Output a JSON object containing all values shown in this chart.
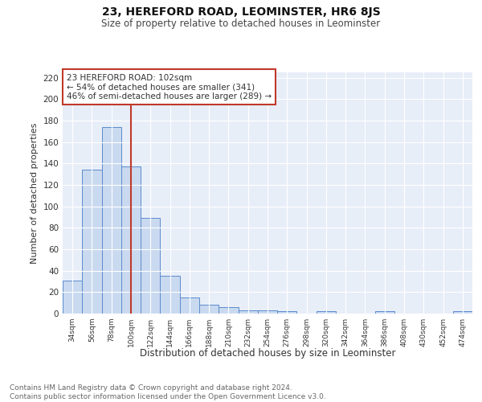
{
  "title": "23, HEREFORD ROAD, LEOMINSTER, HR6 8JS",
  "subtitle": "Size of property relative to detached houses in Leominster",
  "xlabel": "Distribution of detached houses by size in Leominster",
  "ylabel": "Number of detached properties",
  "categories": [
    "34sqm",
    "56sqm",
    "78sqm",
    "100sqm",
    "122sqm",
    "144sqm",
    "166sqm",
    "188sqm",
    "210sqm",
    "232sqm",
    "254sqm",
    "276sqm",
    "298sqm",
    "320sqm",
    "342sqm",
    "364sqm",
    "386sqm",
    "408sqm",
    "430sqm",
    "452sqm",
    "474sqm"
  ],
  "values": [
    31,
    134,
    174,
    137,
    89,
    35,
    15,
    8,
    6,
    3,
    3,
    2,
    0,
    2,
    0,
    0,
    2,
    0,
    0,
    0,
    2
  ],
  "bar_color": "#c9d9f0",
  "bar_edge_color": "#5b8ccc",
  "vline_x": 3,
  "vline_color": "#c0392b",
  "annotation_text": "23 HEREFORD ROAD: 102sqm\n← 54% of detached houses are smaller (341)\n46% of semi-detached houses are larger (289) →",
  "annotation_box_color": "#ffffff",
  "annotation_box_edge": "#c0392b",
  "ylim": [
    0,
    225
  ],
  "yticks": [
    0,
    20,
    40,
    60,
    80,
    100,
    120,
    140,
    160,
    180,
    200,
    220
  ],
  "bg_color": "#e8eef8",
  "grid_color": "#ffffff",
  "fig_bg_color": "#ffffff",
  "footer_line1": "Contains HM Land Registry data © Crown copyright and database right 2024.",
  "footer_line2": "Contains public sector information licensed under the Open Government Licence v3.0."
}
